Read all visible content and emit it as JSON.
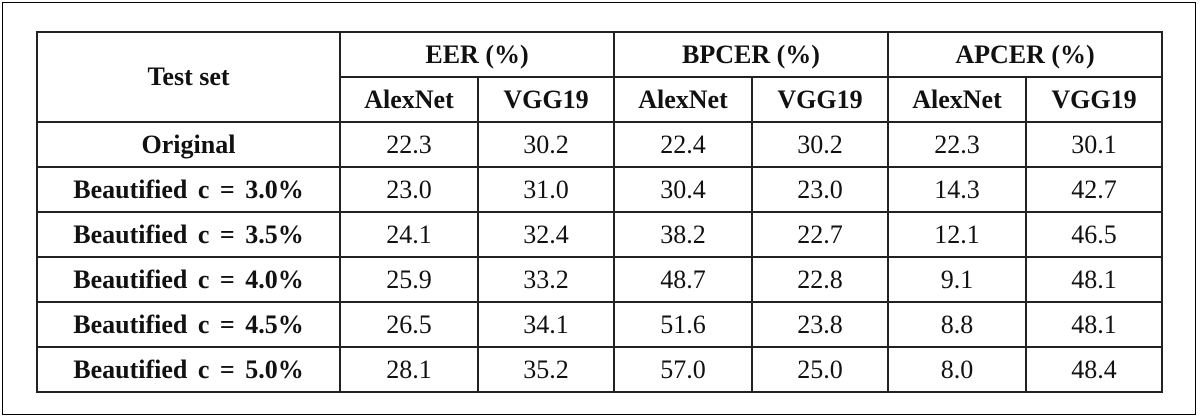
{
  "table": {
    "header": {
      "first": "Test set",
      "groups": [
        {
          "label": "EER (%)",
          "columns": [
            "AlexNet",
            "VGG19"
          ]
        },
        {
          "label": "BPCER (%)",
          "columns": [
            "AlexNet",
            "VGG19"
          ]
        },
        {
          "label": "APCER (%)",
          "columns": [
            "AlexNet",
            "VGG19"
          ]
        }
      ]
    },
    "rows": [
      {
        "label": "Original",
        "cells": [
          "22.3",
          "30.2",
          "22.4",
          "30.2",
          "22.3",
          "30.1"
        ]
      },
      {
        "label": "Beautified c = 3.0%",
        "cells": [
          "23.0",
          "31.0",
          "30.4",
          "23.0",
          "14.3",
          "42.7"
        ]
      },
      {
        "label": "Beautified c = 3.5%",
        "cells": [
          "24.1",
          "32.4",
          "38.2",
          "22.7",
          "12.1",
          "46.5"
        ]
      },
      {
        "label": "Beautified c = 4.0%",
        "cells": [
          "25.9",
          "33.2",
          "48.7",
          "22.8",
          "9.1",
          "48.1"
        ]
      },
      {
        "label": "Beautified c = 4.5%",
        "cells": [
          "26.5",
          "34.1",
          "51.6",
          "23.8",
          "8.8",
          "48.1"
        ]
      },
      {
        "label": "Beautified c = 5.0%",
        "cells": [
          "28.1",
          "35.2",
          "57.0",
          "25.0",
          "8.0",
          "48.4"
        ]
      }
    ]
  }
}
